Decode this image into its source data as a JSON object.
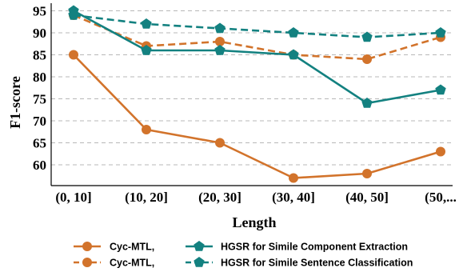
{
  "chart_data": {
    "type": "line",
    "categories": [
      "(0, 10]",
      "(10, 20]",
      "(20, 30]",
      "(30, 40]",
      "(40, 50]",
      "(50,..."
    ],
    "xlabel": "Length",
    "ylabel": "F1-score",
    "ylim": [
      55,
      96
    ],
    "yticks": [
      60,
      65,
      70,
      75,
      80,
      85,
      90,
      95
    ],
    "grid": "horizontal dashed",
    "legend_position": "bottom",
    "series": [
      {
        "name": "Cyc-MTL,",
        "values": [
          85,
          68,
          65,
          57,
          58,
          63
        ],
        "color": "#d2732b",
        "dash": "solid",
        "marker": "circle"
      },
      {
        "name": "Cyc-MTL,",
        "values": [
          94,
          87,
          88,
          85,
          84,
          89
        ],
        "color": "#d2732b",
        "dash": "dashed",
        "marker": "circle"
      },
      {
        "name": "HGSR for Simile Component Extraction",
        "values": [
          95,
          86,
          86,
          85,
          74,
          77
        ],
        "color": "#138180",
        "dash": "solid",
        "marker": "pentagon"
      },
      {
        "name": "HGSR for Simile Sentence Classification",
        "values": [
          94,
          92,
          91,
          90,
          89,
          90
        ],
        "color": "#138180",
        "dash": "dashed",
        "marker": "pentagon"
      }
    ]
  }
}
